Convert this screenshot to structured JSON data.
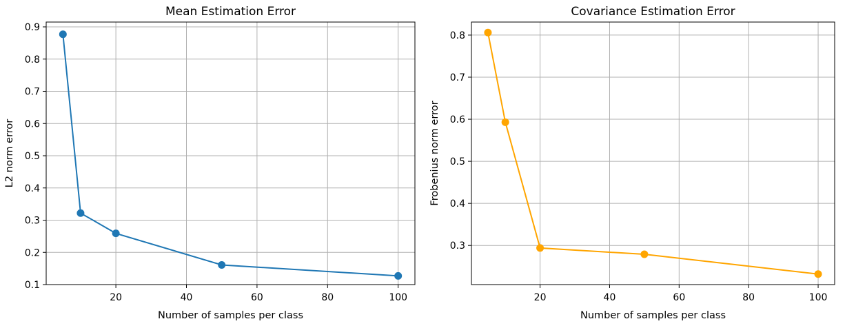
{
  "chart_data": [
    {
      "type": "line",
      "title": "Mean Estimation Error",
      "xlabel": "Number of samples per class",
      "ylabel": "L2 norm error",
      "x": [
        5,
        10,
        20,
        50,
        100
      ],
      "series": [
        {
          "values": [
            0.877,
            0.322,
            0.259,
            0.161,
            0.127
          ],
          "color": "#1f77b4"
        }
      ],
      "xlim": [
        0.25,
        104.75
      ],
      "ylim": [
        0.1,
        0.915
      ],
      "xticks": [
        20,
        40,
        60,
        80,
        100
      ],
      "xtick_labels": [
        "20",
        "40",
        "60",
        "80",
        "100"
      ],
      "yticks": [
        0.1,
        0.2,
        0.3,
        0.4,
        0.5,
        0.6,
        0.7,
        0.8,
        0.9
      ],
      "ytick_labels": [
        "0.1",
        "0.2",
        "0.3",
        "0.4",
        "0.5",
        "0.6",
        "0.7",
        "0.8",
        "0.9"
      ],
      "grid": true,
      "marker": "circle"
    },
    {
      "type": "line",
      "title": "Covariance Estimation Error",
      "xlabel": "Number of samples per class",
      "ylabel": "Frobenius norm error",
      "x": [
        5,
        10,
        20,
        50,
        100
      ],
      "series": [
        {
          "values": [
            0.806,
            0.593,
            0.294,
            0.279,
            0.232
          ],
          "color": "#ffa500"
        }
      ],
      "xlim": [
        0.25,
        104.75
      ],
      "ylim": [
        0.207,
        0.831
      ],
      "xticks": [
        20,
        40,
        60,
        80,
        100
      ],
      "xtick_labels": [
        "20",
        "40",
        "60",
        "80",
        "100"
      ],
      "yticks": [
        0.3,
        0.4,
        0.5,
        0.6,
        0.7,
        0.8
      ],
      "ytick_labels": [
        "0.3",
        "0.4",
        "0.5",
        "0.6",
        "0.7",
        "0.8"
      ],
      "grid": true,
      "marker": "circle"
    }
  ]
}
